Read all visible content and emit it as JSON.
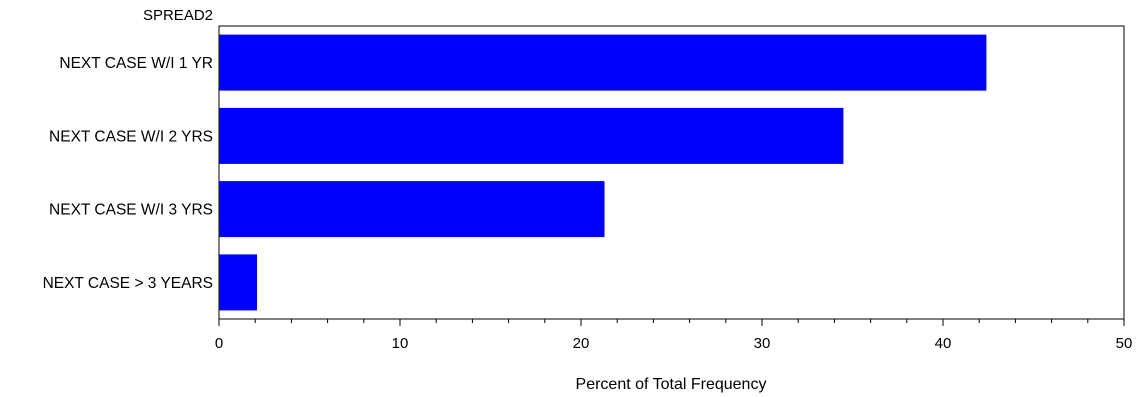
{
  "chart_data": {
    "type": "bar",
    "orientation": "horizontal",
    "variable_label": "SPREAD2",
    "categories": [
      "NEXT CASE W/I 1 YR",
      "NEXT CASE W/I 2 YRS",
      "NEXT CASE W/I 3 YRS",
      "NEXT CASE > 3 YEARS"
    ],
    "values": [
      42.4,
      34.5,
      21.3,
      2.1
    ],
    "xlabel": "Percent of Total Frequency",
    "ylabel": "",
    "xlim": [
      0,
      50
    ],
    "major_ticks": [
      0,
      10,
      20,
      30,
      40,
      50
    ],
    "minor_tick_step": 2,
    "bar_color": "#0000ff",
    "grid": false
  }
}
